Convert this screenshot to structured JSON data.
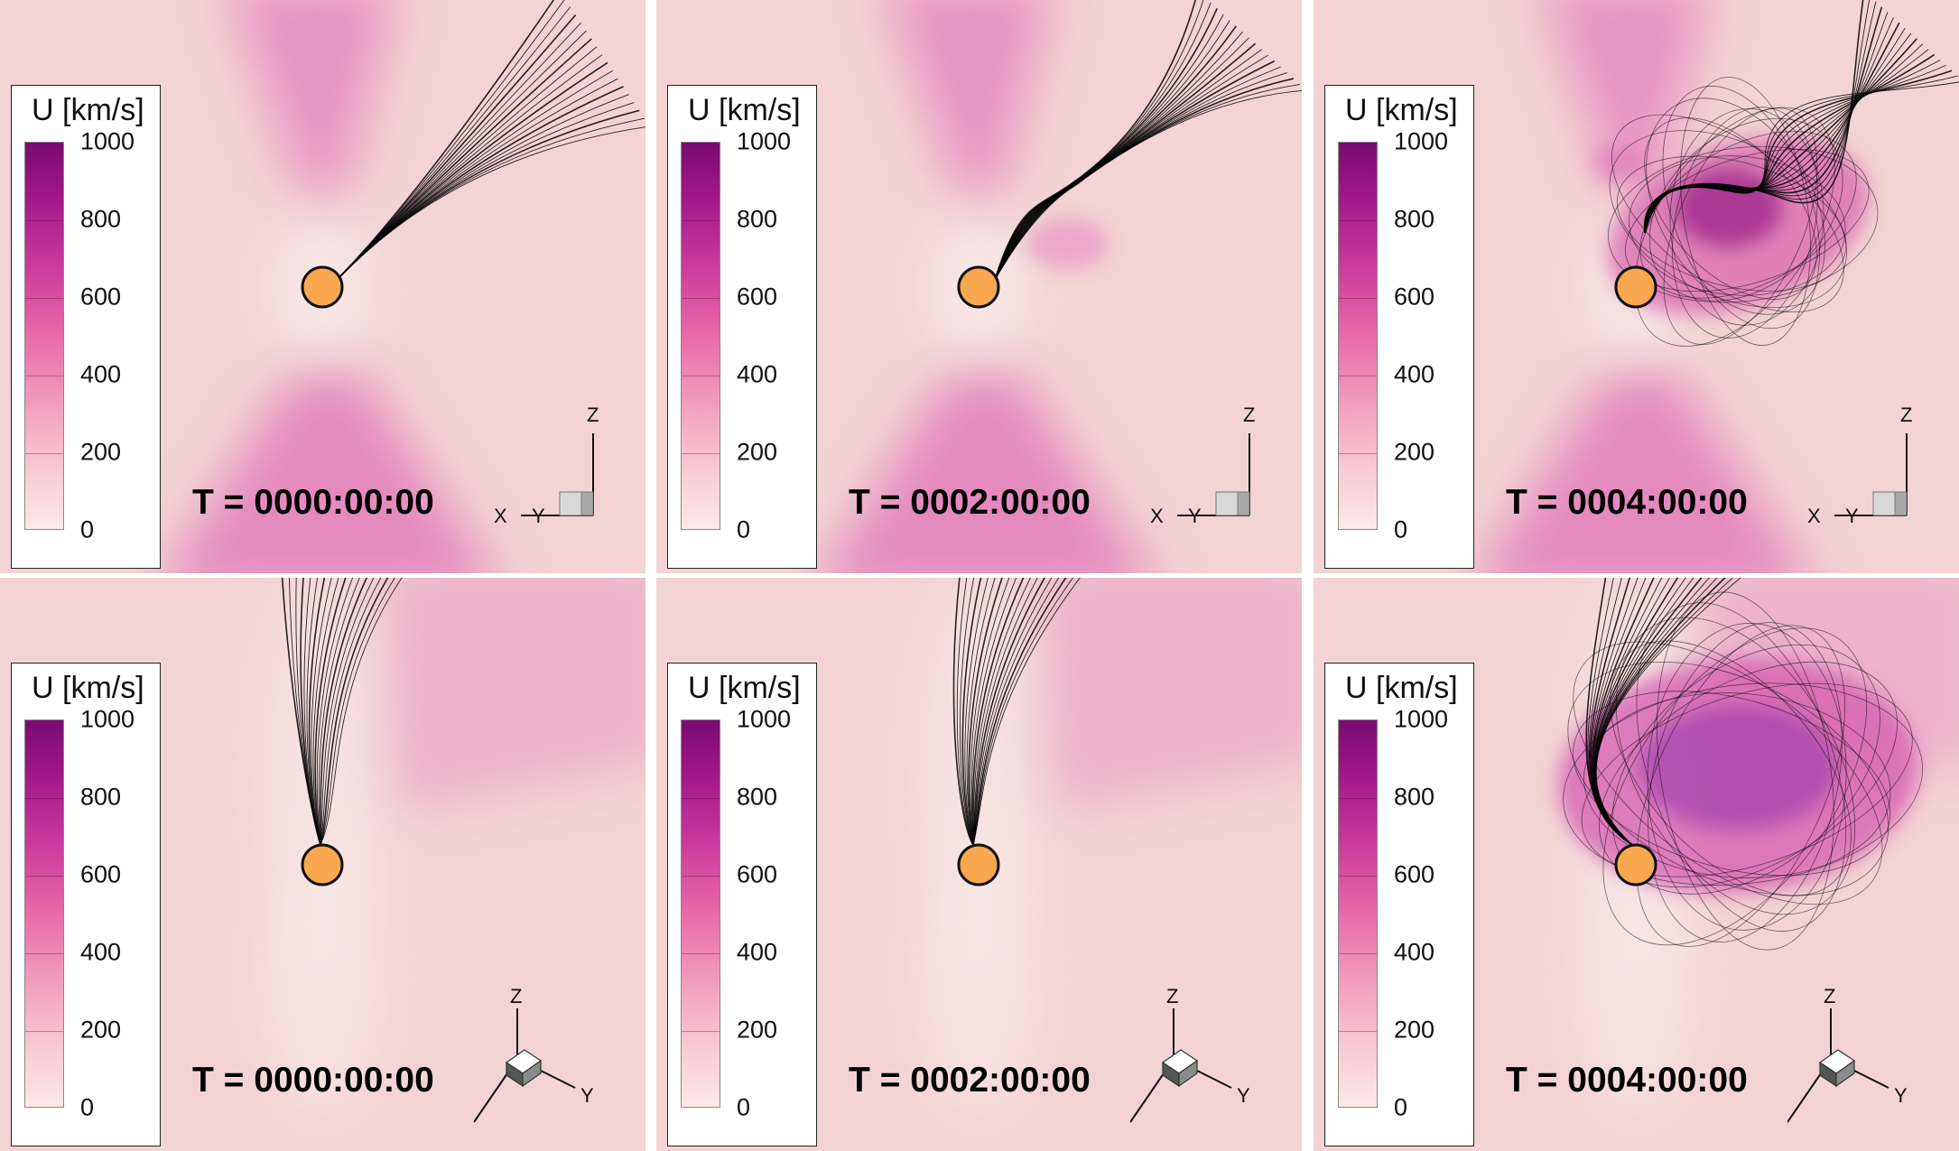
{
  "legend": {
    "title": "U [km/s]",
    "ticks": [
      "1000",
      "800",
      "600",
      "400",
      "200",
      "0"
    ],
    "range": [
      0,
      1000
    ]
  },
  "colors": {
    "background": "#f3d3d3",
    "sun": "#f9a850",
    "high_speed": "#7a0a72",
    "field_lines": "#000000"
  },
  "axis_labels": {
    "x": "X",
    "y": "Y",
    "z": "Z"
  },
  "panels": [
    {
      "time": "T = 0000:00:00",
      "view": "side",
      "stage": 0
    },
    {
      "time": "T = 0002:00:00",
      "view": "side",
      "stage": 1
    },
    {
      "time": "T = 0004:00:00",
      "view": "side",
      "stage": 2
    },
    {
      "time": "T = 0000:00:00",
      "view": "oblique",
      "stage": 0
    },
    {
      "time": "T = 0002:00:00",
      "view": "oblique",
      "stage": 1
    },
    {
      "time": "T = 0004:00:00",
      "view": "oblique",
      "stage": 2
    }
  ]
}
